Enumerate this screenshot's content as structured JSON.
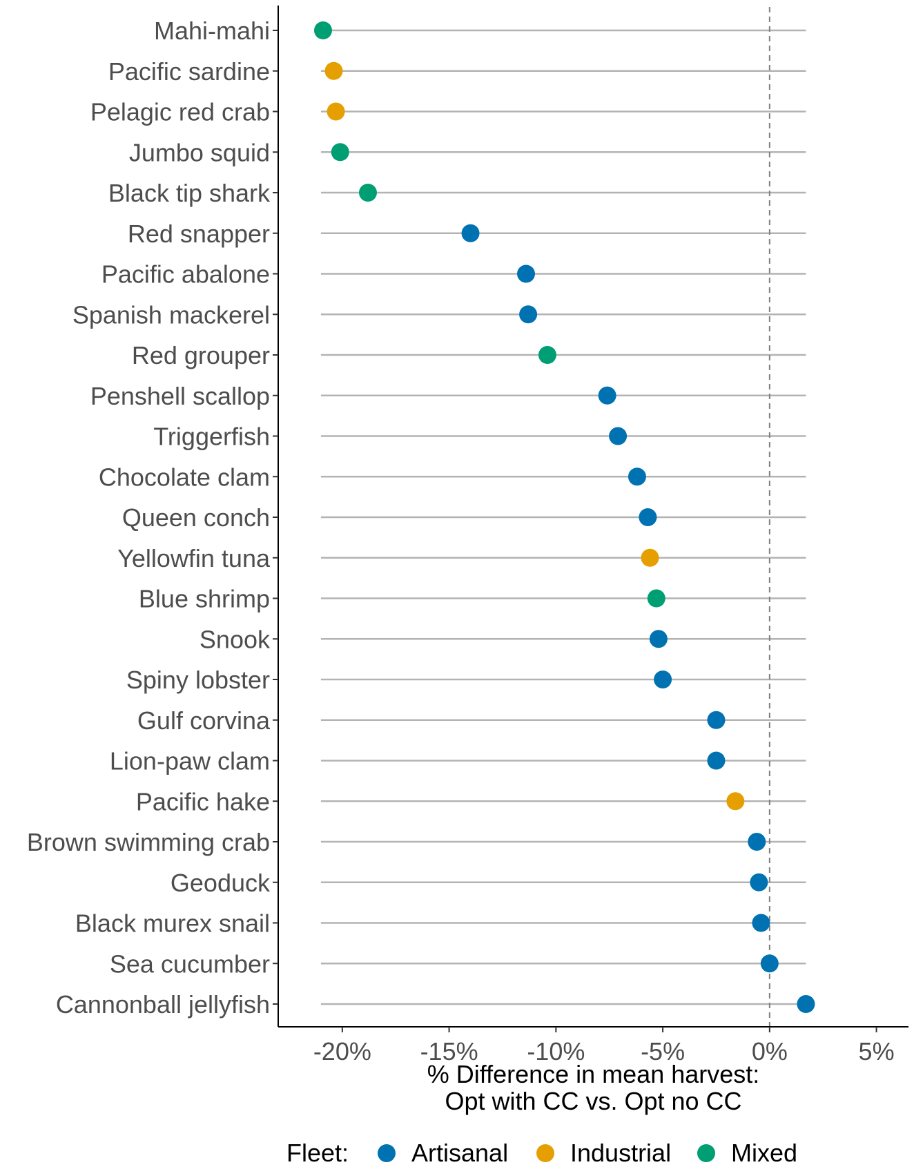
{
  "chart_data": {
    "type": "scatter",
    "style": "dot-plot",
    "categories": [
      "Mahi-mahi",
      "Pacific sardine",
      "Pelagic red crab",
      "Jumbo squid",
      "Black tip shark",
      "Red snapper",
      "Pacific abalone",
      "Spanish mackerel",
      "Red grouper",
      "Penshell scallop",
      "Triggerfish",
      "Chocolate clam",
      "Queen conch",
      "Yellowfin tuna",
      "Blue shrimp",
      "Snook",
      "Spiny lobster",
      "Gulf corvina",
      "Lion-paw clam",
      "Pacific hake",
      "Brown swimming crab",
      "Geoduck",
      "Black murex snail",
      "Sea cucumber",
      "Cannonball jellyfish"
    ],
    "values": [
      -20.9,
      -20.4,
      -20.3,
      -20.1,
      -18.8,
      -14.0,
      -11.4,
      -11.3,
      -10.4,
      -7.6,
      -7.1,
      -6.2,
      -5.7,
      -5.6,
      -5.3,
      -5.2,
      -5.0,
      -2.5,
      -2.5,
      -1.6,
      -0.6,
      -0.5,
      -0.4,
      0.0,
      1.7
    ],
    "fleet": [
      "Mixed",
      "Industrial",
      "Industrial",
      "Mixed",
      "Mixed",
      "Artisanal",
      "Artisanal",
      "Artisanal",
      "Mixed",
      "Artisanal",
      "Artisanal",
      "Artisanal",
      "Artisanal",
      "Industrial",
      "Mixed",
      "Artisanal",
      "Artisanal",
      "Artisanal",
      "Artisanal",
      "Industrial",
      "Artisanal",
      "Artisanal",
      "Artisanal",
      "Artisanal",
      "Artisanal"
    ],
    "xlim": [
      -23,
      6.5
    ],
    "xticks": [
      -20,
      -15,
      -10,
      -5,
      0,
      5
    ],
    "xtick_labels": [
      "-20%",
      "-15%",
      "-10%",
      "-5%",
      "0%",
      "5%"
    ],
    "xlabel_line1": "% Difference in mean harvest:",
    "xlabel_line2": "Opt with CC vs. Opt no CC",
    "reference_line": 0,
    "segment_range": [
      -21,
      1.7
    ],
    "grid": false,
    "legend": {
      "position": "bottom",
      "title": "Fleet:",
      "items": [
        {
          "name": "Artisanal",
          "color": "#0072B2"
        },
        {
          "name": "Industrial",
          "color": "#E69F00"
        },
        {
          "name": "Mixed",
          "color": "#009E73"
        }
      ]
    }
  }
}
